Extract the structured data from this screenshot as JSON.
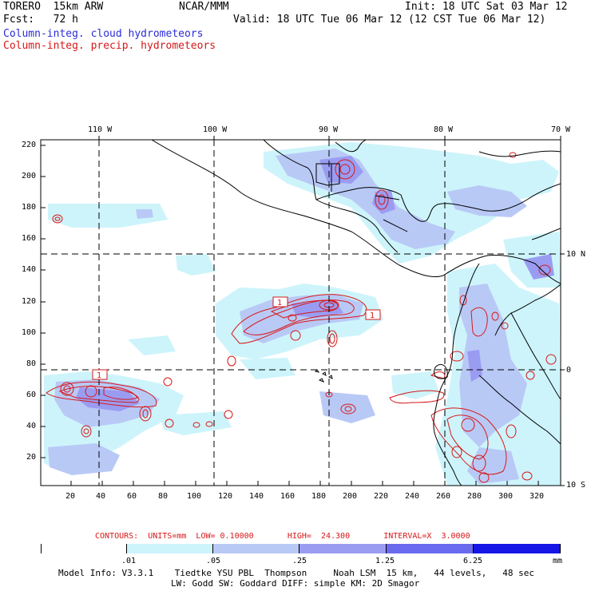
{
  "header": {
    "model": "TORERO  15km ARW",
    "org": "NCAR/MMM",
    "init": "Init: 18 UTC Sat 03 Mar 12",
    "fcst": "Fcst:   72 h",
    "valid": "Valid: 18 UTC Tue 06 Mar 12 (12 CST Tue 06 Mar 12)",
    "field1": "Column-integ. cloud hydrometeors",
    "field2": "Column-integ. precip. hydrometeors"
  },
  "colors": {
    "cloud_field": "#2c2cd8",
    "precip_field": "#d81818",
    "coast": "#000000",
    "bins": [
      "#ffffff",
      "#cdf4fb",
      "#b9c9f6",
      "#9a9cf2",
      "#6a6aee",
      "#3a3aea",
      "#1616e6"
    ]
  },
  "axes": {
    "lon_labels": [
      "110 W",
      "100 W",
      "90 W",
      "80 W",
      "70 W"
    ],
    "lat_labels": [
      "10 N",
      "0",
      "10 S"
    ],
    "y_grid_ticks": [
      "220",
      "200",
      "180",
      "160",
      "140",
      "120",
      "100",
      "80",
      "60",
      "40",
      "20"
    ],
    "x_grid_ticks": [
      "20",
      "40",
      "60",
      "80",
      "100",
      "120",
      "140",
      "160",
      "180",
      "200",
      "220",
      "240",
      "260",
      "280",
      "300",
      "320"
    ]
  },
  "contour_labels": [
    "1",
    "1",
    "1"
  ],
  "contour_info": "CONTOURS:  UNITS=mm  LOW= 0.10000       HIGH=  24.300       INTERVAL=X  3.0000",
  "colorbar": {
    "labels": [
      ".01",
      ".05",
      ".25",
      "1.25",
      "6.25"
    ],
    "unit": "mm"
  },
  "footer": {
    "line1": "Model Info: V3.3.1    Tiedtke YSU PBL  Thompson     Noah LSM  15 km,   44 levels,   48 sec",
    "line2": "LW: Godd SW: Goddard DIFF: simple KM: 2D Smagor"
  }
}
